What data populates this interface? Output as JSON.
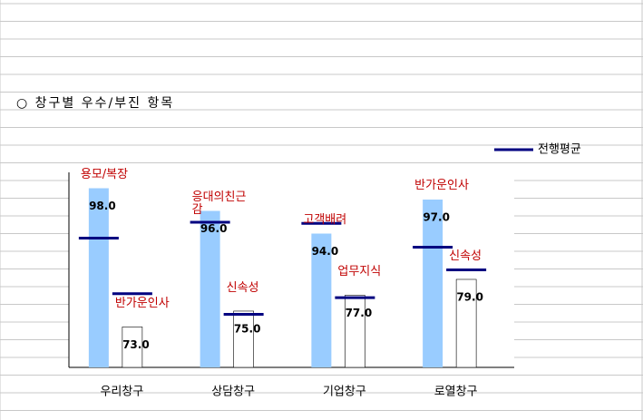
{
  "title": "○ 창구별 우수/부진 항목",
  "chart_data": {
    "type": "bar",
    "categories": [
      "우리창구",
      "상담창구",
      "기업창구",
      "로열창구"
    ],
    "ylim": [
      82.2,
      99.4
    ],
    "y2lim": [
      67.9,
      92.5
    ],
    "series": [
      {
        "color": "#99ccff",
        "values": [
          98,
          96,
          94,
          97
        ],
        "value_labels": [
          "98.0",
          "96.0",
          "94.0",
          "97.0"
        ],
        "item_labels": [
          "용모/복장",
          "응대의친근감",
          "고객배려",
          "반가운인사"
        ]
      },
      {
        "color": "#ffffff",
        "axis": "y2",
        "values": [
          73,
          75,
          77,
          79
        ],
        "value_labels": [
          "73.0",
          "75.0",
          "77.0",
          "79.0"
        ],
        "item_labels": [
          "반가운인사",
          "신속성",
          "업무지식",
          "신속성"
        ]
      },
      {
        "name": "전행평균",
        "type": "marker",
        "color": "#000080",
        "values": [
          93.6,
          95.0,
          94.9,
          92.8
        ]
      },
      {
        "type": "marker",
        "color": "#000080",
        "axis": "y2",
        "values": [
          77.2,
          74.6,
          76.7,
          80.2
        ]
      }
    ]
  }
}
